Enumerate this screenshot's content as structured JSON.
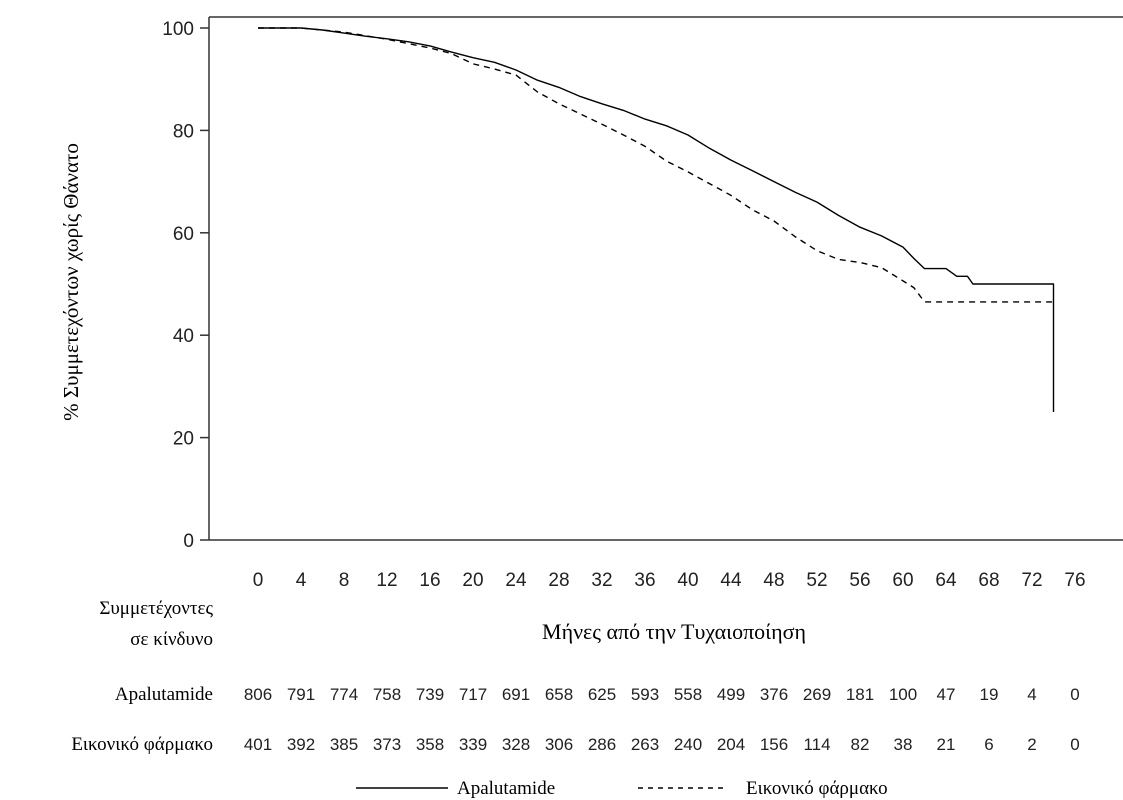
{
  "chart_data": {
    "type": "line",
    "title": "",
    "xlabel": "Μήνες από την Τυχαιοποίηση",
    "ylabel": "% Συμμετεχόντων χωρίς Θάνατο",
    "xlim": [
      -4,
      78
    ],
    "ylim": [
      0,
      102
    ],
    "x_ticks": [
      0,
      4,
      8,
      12,
      16,
      20,
      24,
      28,
      32,
      36,
      40,
      44,
      48,
      52,
      56,
      60,
      64,
      68,
      72,
      76
    ],
    "y_ticks": [
      0,
      20,
      40,
      60,
      80,
      100
    ],
    "grid": false,
    "legend_position": "bottom",
    "series": [
      {
        "name": "Apalutamide",
        "style": "solid",
        "color": "#000000",
        "points": [
          [
            0,
            100
          ],
          [
            4,
            100
          ],
          [
            6,
            99.6
          ],
          [
            8,
            99
          ],
          [
            10,
            98.4
          ],
          [
            12,
            97.9
          ],
          [
            14,
            97.3
          ],
          [
            16,
            96.5
          ],
          [
            18,
            95.3
          ],
          [
            20,
            94.2
          ],
          [
            22,
            93.3
          ],
          [
            24,
            91.8
          ],
          [
            26,
            89.8
          ],
          [
            28,
            88.4
          ],
          [
            30,
            86.6
          ],
          [
            32,
            85.2
          ],
          [
            34,
            83.9
          ],
          [
            36,
            82.2
          ],
          [
            38,
            80.9
          ],
          [
            40,
            79.1
          ],
          [
            42,
            76.5
          ],
          [
            44,
            74.2
          ],
          [
            46,
            72.1
          ],
          [
            48,
            70
          ],
          [
            50,
            67.9
          ],
          [
            52,
            66
          ],
          [
            54,
            63.4
          ],
          [
            56,
            61.1
          ],
          [
            58,
            59.4
          ],
          [
            60,
            57.2
          ],
          [
            61,
            55
          ],
          [
            62,
            53
          ],
          [
            64,
            53
          ],
          [
            65,
            51.5
          ],
          [
            66,
            51.5
          ],
          [
            66.5,
            50
          ],
          [
            74,
            50
          ],
          [
            74,
            25
          ]
        ]
      },
      {
        "name": "Εικονικό φάρμακο",
        "style": "dashed",
        "color": "#000000",
        "points": [
          [
            0,
            100
          ],
          [
            4,
            100
          ],
          [
            8,
            99.2
          ],
          [
            12,
            97.8
          ],
          [
            16,
            96.1
          ],
          [
            18,
            95
          ],
          [
            20,
            93
          ],
          [
            22,
            92
          ],
          [
            24,
            90.8
          ],
          [
            26,
            87.5
          ],
          [
            28,
            85.2
          ],
          [
            30,
            83.2
          ],
          [
            32,
            81.2
          ],
          [
            34,
            79.1
          ],
          [
            36,
            76.9
          ],
          [
            38,
            74
          ],
          [
            40,
            71.9
          ],
          [
            42,
            69.6
          ],
          [
            44,
            67.3
          ],
          [
            46,
            64.5
          ],
          [
            48,
            62.3
          ],
          [
            50,
            59.2
          ],
          [
            52,
            56.5
          ],
          [
            54,
            54.8
          ],
          [
            56,
            54.2
          ],
          [
            58,
            53.2
          ],
          [
            60,
            50.6
          ],
          [
            61,
            49.3
          ],
          [
            62,
            46.5
          ],
          [
            74,
            46.5
          ]
        ]
      }
    ],
    "risk_table": {
      "title_line1": "Συμμετέχοντες",
      "title_line2": "σε κίνδυνο",
      "rows": [
        {
          "label": "Apalutamide",
          "values": [
            "806",
            "791",
            "774",
            "758",
            "739",
            "717",
            "691",
            "658",
            "625",
            "593",
            "558",
            "499",
            "376",
            "269",
            "181",
            "100",
            "47",
            "19",
            "4",
            "0"
          ]
        },
        {
          "label": "Εικονικό φάρμακο",
          "values": [
            "401",
            "392",
            "385",
            "373",
            "358",
            "339",
            "328",
            "306",
            "286",
            "263",
            "240",
            "204",
            "156",
            "114",
            "82",
            "38",
            "21",
            "6",
            "2",
            "0"
          ]
        }
      ]
    }
  }
}
